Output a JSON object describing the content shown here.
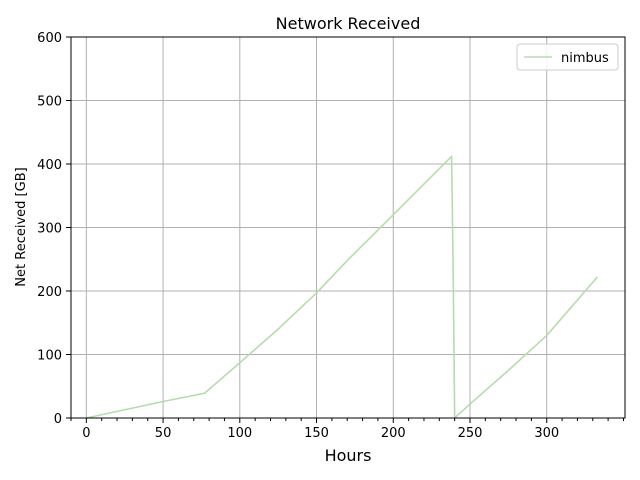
{
  "chart_data": {
    "type": "line",
    "title": "Network Received",
    "xlabel": "Hours",
    "ylabel": "Net Received [GB]",
    "xlim": [
      -10,
      351
    ],
    "ylim": [
      0,
      600
    ],
    "xticks": [
      0,
      50,
      100,
      150,
      200,
      250,
      300
    ],
    "yticks": [
      0,
      100,
      200,
      300,
      400,
      500,
      600
    ],
    "x_minor_step": 10,
    "grid": true,
    "legend_position": "upper right",
    "series": [
      {
        "name": "nimbus",
        "color": "#b5dcad",
        "points": [
          [
            0,
            0
          ],
          [
            25,
            13
          ],
          [
            50,
            26
          ],
          [
            77,
            39
          ],
          [
            100,
            87
          ],
          [
            125,
            140
          ],
          [
            150,
            197
          ],
          [
            170,
            248
          ],
          [
            200,
            320
          ],
          [
            238,
            412
          ],
          [
            239,
            240
          ],
          [
            240,
            0
          ],
          [
            250,
            22
          ],
          [
            275,
            75
          ],
          [
            300,
            130
          ],
          [
            333,
            222
          ]
        ]
      }
    ]
  }
}
